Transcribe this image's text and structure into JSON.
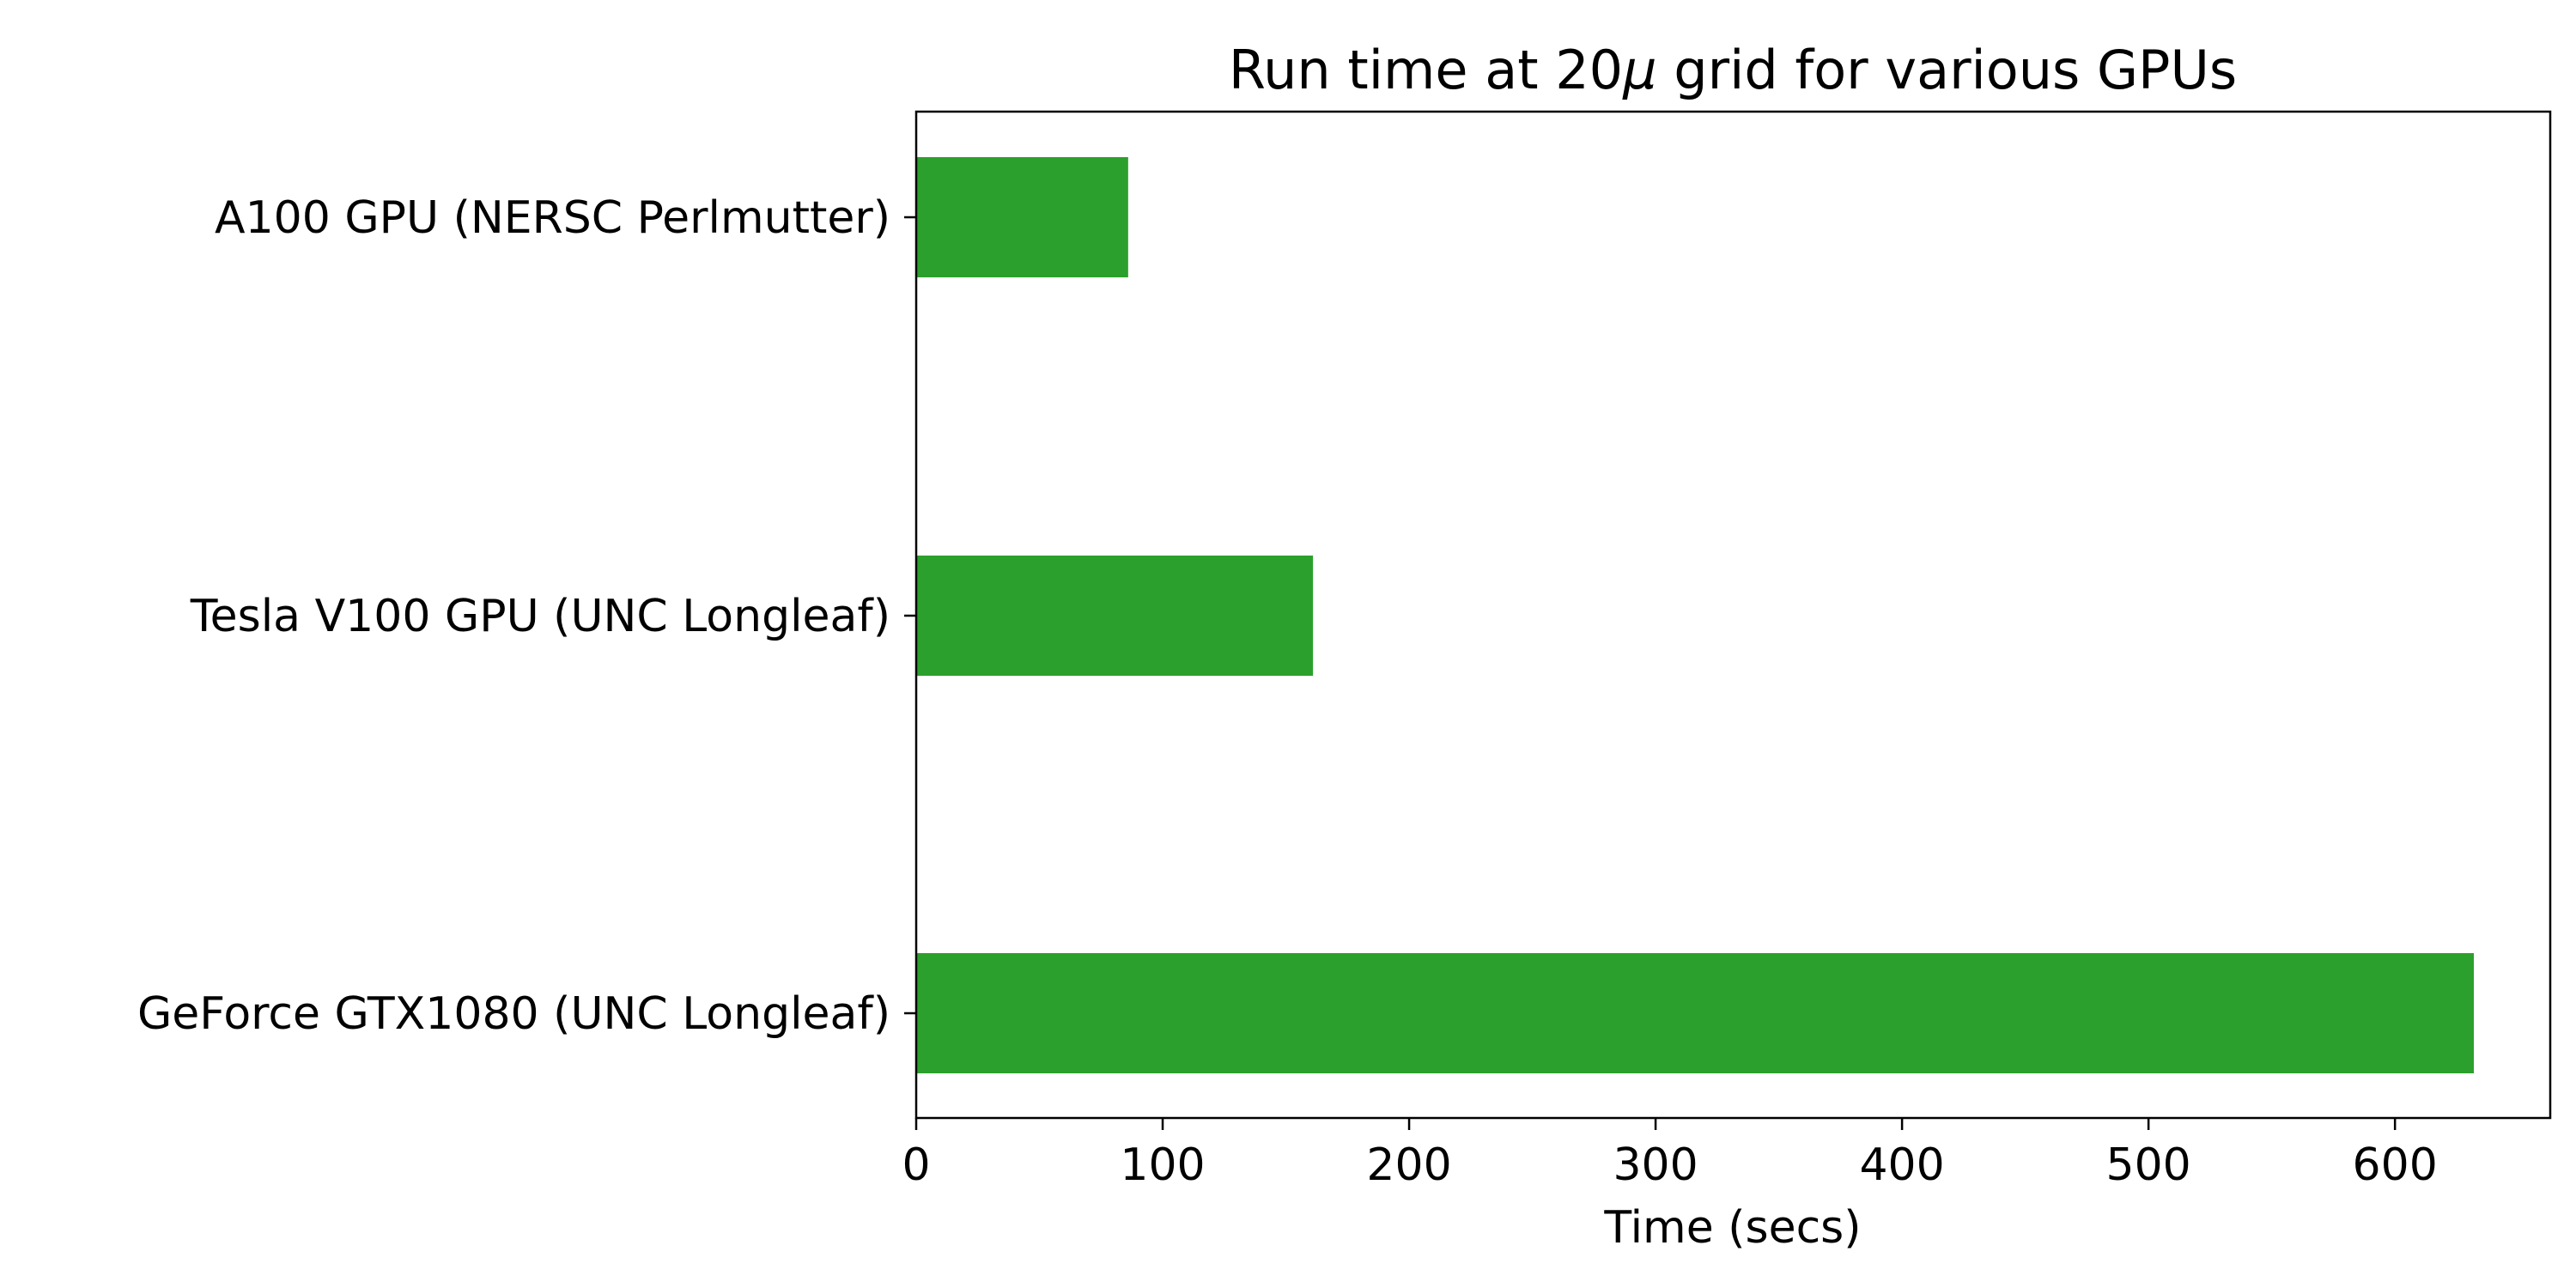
{
  "chart_data": {
    "type": "bar",
    "orientation": "horizontal",
    "title_prefix": "Run time at 20",
    "title_symbol": "μ",
    "title_suffix": " grid for various GPUs",
    "title": "Run time at 20μ grid for various GPUs",
    "xlabel": "Time (secs)",
    "ylabel": "",
    "categories": [
      "A100 GPU (NERSC Perlmutter)",
      "Tesla V100 GPU (UNC Longleaf)",
      "GeForce GTX1080 (UNC Longleaf)"
    ],
    "values": [
      86,
      161,
      632
    ],
    "xlim": [
      0,
      663
    ],
    "xticks": [
      0,
      100,
      200,
      300,
      400,
      500,
      600
    ],
    "bar_color": "#2ca02c",
    "grid": false,
    "legend": "none"
  }
}
